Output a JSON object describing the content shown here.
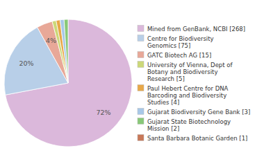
{
  "chart_data": {
    "type": "pie",
    "categories": [
      "Mined from GenBank, NCBI [268]",
      "Centre for Biodiversity\nGenomics [75]",
      "GATC Biotech AG [15]",
      "University of Vienna, Dept of\nBotany and Biodiversity\nResearch [5]",
      "Paul Hebert Centre for DNA\nBarcoding and Biodiversity\nStudies [4]",
      "Gujarat Biodiversity Gene Bank [3]",
      "Gujarat State Biotechnology\nMission [2]",
      "Santa Barbara Botanic Garden [1]"
    ],
    "values": [
      72,
      20,
      4,
      1,
      1,
      1,
      1,
      0
    ],
    "value_labels": [
      "72%",
      "20%",
      "4%",
      null,
      null,
      null,
      null,
      null
    ],
    "colors": [
      "#dbb8db",
      "#b8cfe8",
      "#e8a898",
      "#ccd878",
      "#e8a848",
      "#a8c8e8",
      "#88c878",
      "#c87858"
    ],
    "data_labels": true,
    "legend": "right"
  }
}
